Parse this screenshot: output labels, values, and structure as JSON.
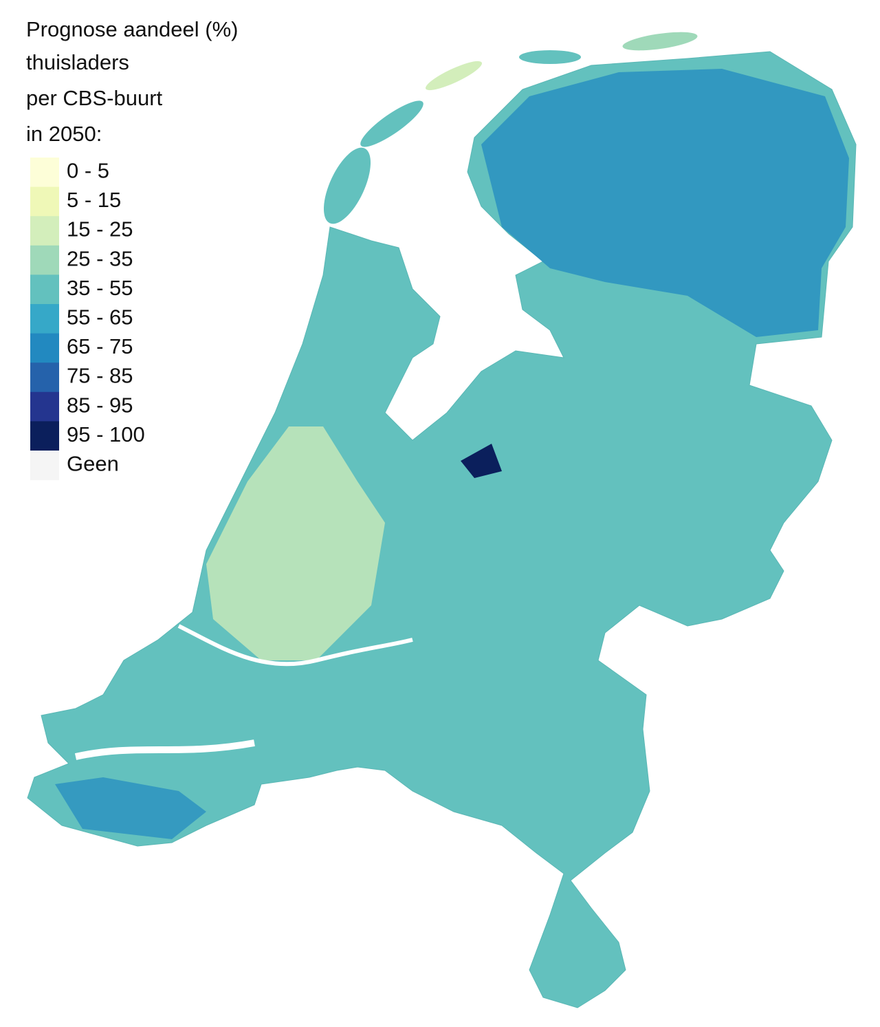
{
  "title": [
    "Prognose aandeel (%)",
    "thuisladers",
    "per CBS-buurt",
    "in 2050:"
  ],
  "legend": [
    {
      "label": "0 - 5",
      "color": "#fdfed8"
    },
    {
      "label": "5 - 15",
      "color": "#eff8b7"
    },
    {
      "label": "15 - 25",
      "color": "#d3eebb"
    },
    {
      "label": "25 - 35",
      "color": "#9fd9b9"
    },
    {
      "label": "35 - 55",
      "color": "#63c1be"
    },
    {
      "label": "55 - 65",
      "color": "#36a8c8"
    },
    {
      "label": "65 - 75",
      "color": "#2289c0"
    },
    {
      "label": "75 - 85",
      "color": "#2562ab"
    },
    {
      "label": "85 - 95",
      "color": "#24358f"
    },
    {
      "label": "95 - 100",
      "color": "#0b1f5c"
    },
    {
      "label": "Geen",
      "color": "#f5f5f5"
    }
  ]
}
